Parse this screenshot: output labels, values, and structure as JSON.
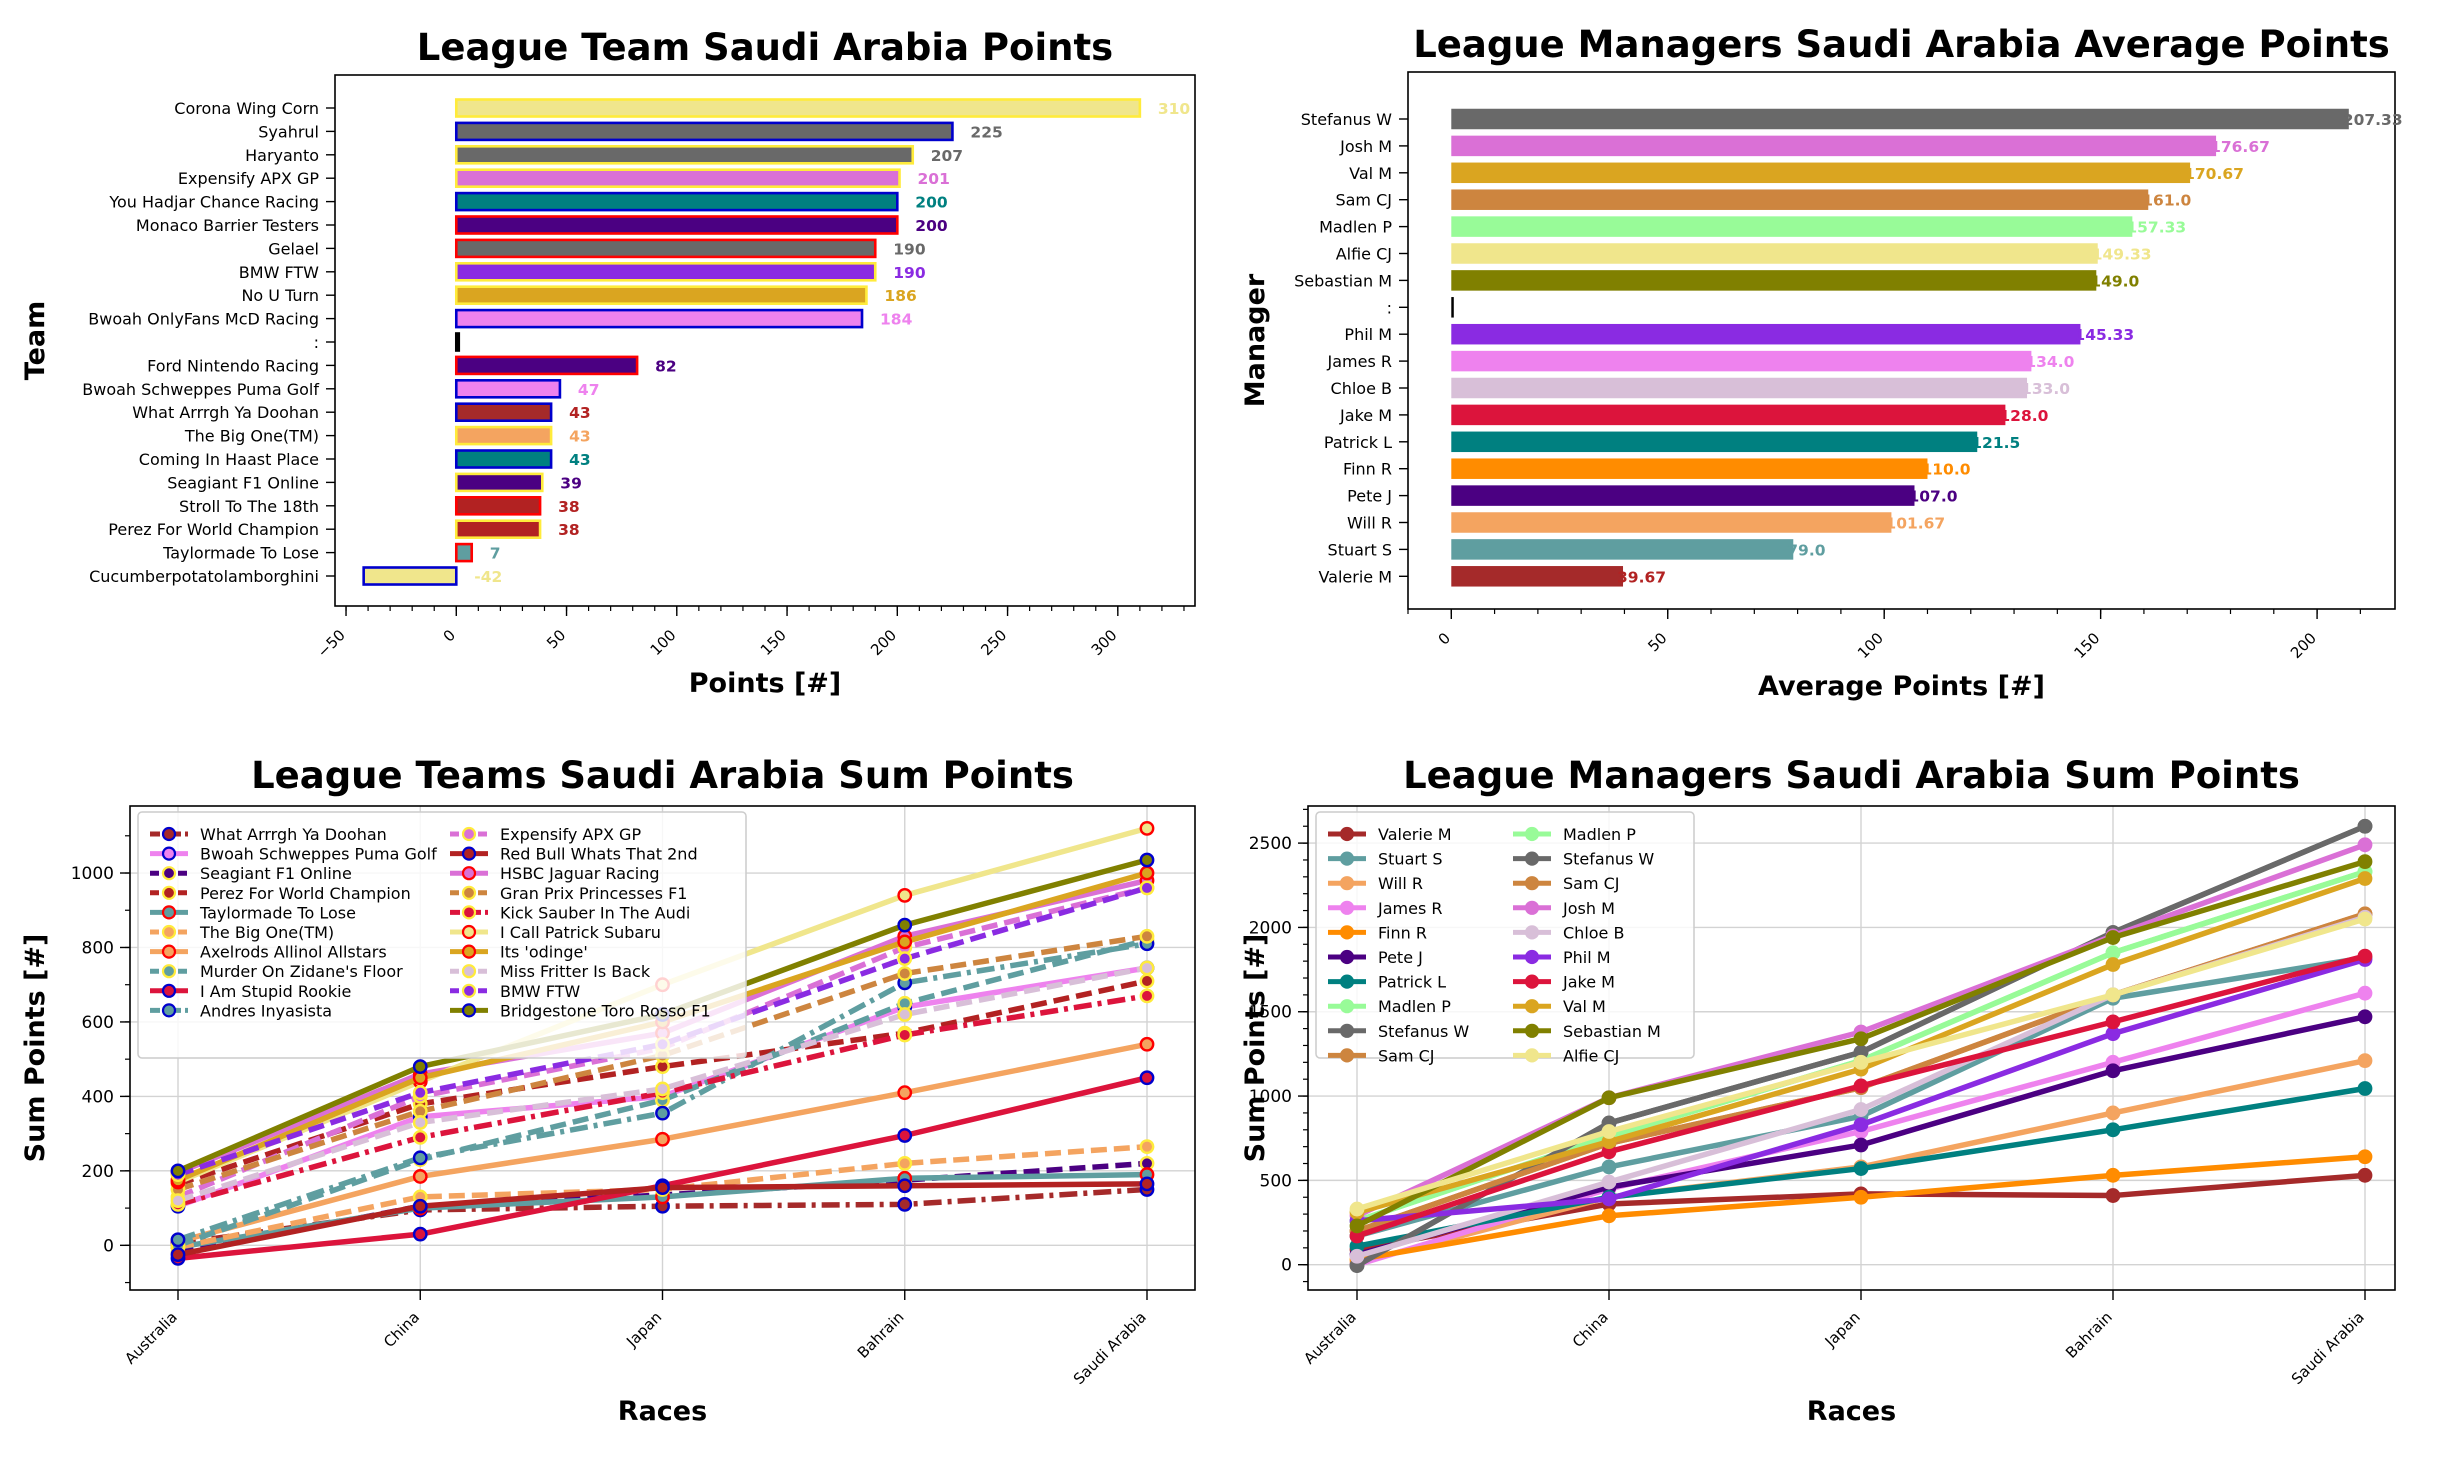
{
  "chart_data": [
    {
      "type": "bar",
      "orientation": "horizontal",
      "title": "League Team Saudi Arabia Points",
      "xlabel": "Points [#]",
      "ylabel": "Team",
      "xlim": [
        -55,
        335
      ],
      "xticks": [
        -50,
        0,
        50,
        100,
        150,
        200,
        250,
        300
      ],
      "xtick_labels": [
        "−50",
        "0",
        "50",
        "100",
        "150",
        "200",
        "250",
        "300"
      ],
      "categories": [
        "Corona Wing Corn",
        "Syahrul",
        "Haryanto",
        "Expensify APX GP",
        "You Hadjar Chance Racing",
        "Monaco Barrier Testers",
        "Gelael",
        "BMW FTW",
        "No U Turn",
        "Bwoah OnlyFans McD Racing",
        ":",
        "Ford Nintendo Racing",
        "Bwoah Schweppes Puma Golf",
        "What Arrrgh Ya Doohan",
        "The Big One(TM)",
        "Coming In Haast Place",
        "Seagiant F1 Online",
        "Stroll To The 18th",
        "Perez For World Champion",
        "Taylormade To Lose",
        "Cucumberpotatolamborghini"
      ],
      "values": [
        310,
        225,
        207,
        201,
        200,
        200,
        190,
        190,
        186,
        184,
        0,
        82,
        47,
        43,
        43,
        43,
        39,
        38,
        38,
        7,
        -42
      ],
      "value_labels": [
        "310",
        "225",
        "207",
        "201",
        "200",
        "200",
        "190",
        "190",
        "186",
        "184",
        "",
        "82",
        "47",
        "43",
        "43",
        "43",
        "39",
        "38",
        "38",
        "7",
        "-42"
      ],
      "fill_colors": [
        "#f0e68c",
        "#696969",
        "#696969",
        "#da70d6",
        "#008080",
        "#4b0082",
        "#696969",
        "#8a2be2",
        "#daa520",
        "#ee82ee",
        "#000000",
        "#4b0082",
        "#ee82ee",
        "#a52a2a",
        "#f4a460",
        "#008080",
        "#4b0082",
        "#b22222",
        "#b22222",
        "#5f9ea0",
        "#f0e68c"
      ],
      "edge_colors": [
        "#ffeb3b",
        "#0000cd",
        "#ffeb3b",
        "#ffeb3b",
        "#0000cd",
        "#ff0000",
        "#ff0000",
        "#ffeb3b",
        "#ffeb3b",
        "#0000cd",
        "#000000",
        "#ff0000",
        "#0000cd",
        "#0000cd",
        "#ffeb3b",
        "#0000cd",
        "#ffeb3b",
        "#ff0000",
        "#ffeb3b",
        "#ff0000",
        "#0000cd"
      ],
      "label_colors": [
        "#f0e68c",
        "#696969",
        "#696969",
        "#da70d6",
        "#008080",
        "#4b0082",
        "#696969",
        "#8a2be2",
        "#daa520",
        "#ee82ee",
        "#000000",
        "#4b0082",
        "#ee82ee",
        "#b22222",
        "#f4a460",
        "#008080",
        "#4b0082",
        "#b22222",
        "#b22222",
        "#5f9ea0",
        "#f0e68c"
      ]
    },
    {
      "type": "bar",
      "orientation": "horizontal",
      "title": "League Managers Saudi Arabia Average Points",
      "xlabel": "Average Points [#]",
      "ylabel": "Manager",
      "xlim": [
        -10,
        218
      ],
      "xticks": [
        0,
        50,
        100,
        150,
        200
      ],
      "xtick_labels": [
        "0",
        "50",
        "100",
        "150",
        "200"
      ],
      "categories": [
        "Stefanus W",
        "Josh M",
        "Val M",
        "Sam CJ",
        "Madlen P",
        "Alfie CJ",
        "Sebastian M",
        ":",
        "Phil M",
        "James R",
        "Chloe B",
        "Jake M",
        "Patrick L",
        "Finn R",
        "Pete J",
        "Will R",
        "Stuart S",
        "Valerie M"
      ],
      "values": [
        207.33,
        176.67,
        170.67,
        161.0,
        157.33,
        149.33,
        149.0,
        0,
        145.33,
        134.0,
        133.0,
        128.0,
        121.5,
        110.0,
        107.0,
        101.67,
        79.0,
        39.67
      ],
      "value_labels": [
        "207.33",
        "176.67",
        "170.67",
        "161.0",
        "157.33",
        "149.33",
        "149.0",
        "",
        "145.33",
        "134.0",
        "133.0",
        "128.0",
        "121.5",
        "110.0",
        "107.0",
        "101.67",
        "79.0",
        "39.67"
      ],
      "fill_colors": [
        "#696969",
        "#da70d6",
        "#daa520",
        "#cd853f",
        "#98fb98",
        "#f0e68c",
        "#808000",
        "#000000",
        "#8a2be2",
        "#ee82ee",
        "#d8bfd8",
        "#dc143c",
        "#008080",
        "#ff8c00",
        "#4b0082",
        "#f4a460",
        "#5f9ea0",
        "#a52a2a"
      ],
      "label_colors": [
        "#696969",
        "#da70d6",
        "#daa520",
        "#cd853f",
        "#98fb98",
        "#f0e68c",
        "#808000",
        "#000000",
        "#8a2be2",
        "#ee82ee",
        "#d8bfd8",
        "#dc143c",
        "#008080",
        "#ff8c00",
        "#4b0082",
        "#f4a460",
        "#5f9ea0",
        "#b22222"
      ]
    },
    {
      "type": "line",
      "title": "League Teams Saudi Arabia Sum Points",
      "xlabel": "Races",
      "ylabel": "Sum Points [#]",
      "categories": [
        "Australia",
        "China",
        "Japan",
        "Bahrain",
        "Saudi Arabia"
      ],
      "ylim": [
        -120,
        1180
      ],
      "yticks": [
        0,
        200,
        400,
        600,
        800,
        1000
      ],
      "grid": true,
      "legend_position": "top-left",
      "legend_columns": 2,
      "series": [
        {
          "name": "What Arrrgh Ya Doohan",
          "values": [
            5,
            95,
            105,
            110,
            150
          ],
          "color": "#a52a2a",
          "dash": "dashdot",
          "marker_edge": "#0000cd"
        },
        {
          "name": "Bwoah Schweppes Puma Golf",
          "values": [
            105,
            345,
            400,
            640,
            745
          ],
          "color": "#ee82ee",
          "dash": "solid",
          "marker_edge": "#0000cd"
        },
        {
          "name": "Seagiant F1 Online",
          "values": [
            -20,
            105,
            135,
            175,
            220
          ],
          "color": "#4b0082",
          "dash": "dashed",
          "marker_edge": "#ffeb3b"
        },
        {
          "name": "Perez For World Champion",
          "values": [
            165,
            380,
            480,
            570,
            710
          ],
          "color": "#b22222",
          "dash": "dashed",
          "marker_edge": "#ffeb3b"
        },
        {
          "name": "Taylormade To Lose",
          "values": [
            -5,
            100,
            130,
            180,
            190
          ],
          "color": "#5f9ea0",
          "dash": "solid",
          "marker_edge": "#ff0000"
        },
        {
          "name": "The Big One(TM)",
          "values": [
            -5,
            130,
            150,
            220,
            265
          ],
          "color": "#f4a460",
          "dash": "dashed",
          "marker_edge": "#ffeb3b"
        },
        {
          "name": "Axelrods Allinol Allstars",
          "values": [
            10,
            185,
            285,
            410,
            540
          ],
          "color": "#f4a460",
          "dash": "solid",
          "marker_edge": "#ff0000"
        },
        {
          "name": "Murder On Zidane's Floor",
          "values": [
            0,
            230,
            390,
            650,
            820
          ],
          "color": "#5f9ea0",
          "dash": "dashed",
          "marker_edge": "#ffeb3b"
        },
        {
          "name": "I Am Stupid Rookie",
          "values": [
            -35,
            30,
            160,
            295,
            450
          ],
          "color": "#dc143c",
          "dash": "solid",
          "marker_edge": "#0000cd"
        },
        {
          "name": "Andres Inyasista",
          "values": [
            15,
            235,
            355,
            705,
            810
          ],
          "color": "#5f9ea0",
          "dash": "dashdot",
          "marker_edge": "#0000cd"
        },
        {
          "name": "Expensify APX GP",
          "values": [
            130,
            400,
            530,
            800,
            960
          ],
          "color": "#da70d6",
          "dash": "dashed",
          "marker_edge": "#ffeb3b"
        },
        {
          "name": "Red Bull Whats That 2nd",
          "values": [
            -25,
            105,
            155,
            160,
            165
          ],
          "color": "#b22222",
          "dash": "solid",
          "marker_edge": "#0000cd"
        },
        {
          "name": "HSBC Jaguar Racing",
          "values": [
            195,
            460,
            570,
            830,
            980
          ],
          "color": "#da70d6",
          "dash": "solid",
          "marker_edge": "#ff0000"
        },
        {
          "name": "Gran Prix Princesses F1",
          "values": [
            150,
            360,
            510,
            730,
            830
          ],
          "color": "#cd853f",
          "dash": "dashed",
          "marker_edge": "#ffeb3b"
        },
        {
          "name": "Kick Sauber In The Audi",
          "values": [
            110,
            290,
            410,
            565,
            670
          ],
          "color": "#dc143c",
          "dash": "dashdot",
          "marker_edge": "#ffeb3b"
        },
        {
          "name": "I Call Patrick Subaru",
          "values": [
            170,
            440,
            700,
            940,
            1120
          ],
          "color": "#f0e68c",
          "dash": "solid",
          "marker_edge": "#ff0000"
        },
        {
          "name": "Its 'odinge'",
          "values": [
            175,
            450,
            600,
            815,
            1000
          ],
          "color": "#daa520",
          "dash": "solid",
          "marker_edge": "#ff0000"
        },
        {
          "name": "Miss Fritter Is Back",
          "values": [
            120,
            330,
            420,
            620,
            745
          ],
          "color": "#d8bfd8",
          "dash": "dashed",
          "marker_edge": "#ffeb3b"
        },
        {
          "name": "BMW FTW",
          "values": [
            190,
            410,
            540,
            770,
            960
          ],
          "color": "#8a2be2",
          "dash": "dashed",
          "marker_edge": "#ffeb3b"
        },
        {
          "name": "Bridgestone Toro Rosso F1",
          "values": [
            200,
            480,
            620,
            860,
            1035
          ],
          "color": "#808000",
          "dash": "solid",
          "marker_edge": "#0000cd"
        }
      ]
    },
    {
      "type": "line",
      "title": "League Managers Saudi Arabia Sum Points",
      "xlabel": "Races",
      "ylabel": "Sum Points [#]",
      "categories": [
        "Australia",
        "China",
        "Japan",
        "Bahrain",
        "Saudi Arabia"
      ],
      "ylim": [
        -150,
        2720
      ],
      "yticks": [
        0,
        500,
        1000,
        1500,
        2000,
        2500
      ],
      "grid": true,
      "legend_position": "top-left",
      "legend_columns": 2,
      "series": [
        {
          "name": "Valerie M",
          "values": [
            90,
            360,
            420,
            410,
            530
          ],
          "color": "#a52a2a"
        },
        {
          "name": "Stuart S",
          "values": [
            170,
            580,
            880,
            1580,
            1820
          ],
          "color": "#5f9ea0"
        },
        {
          "name": "Will R",
          "values": [
            10,
            400,
            580,
            900,
            1210
          ],
          "color": "#f4a460"
        },
        {
          "name": "James R",
          "values": [
            0,
            450,
            790,
            1200,
            1610
          ],
          "color": "#ee82ee"
        },
        {
          "name": "Finn R",
          "values": [
            30,
            290,
            400,
            530,
            640
          ],
          "color": "#ff8c00"
        },
        {
          "name": "Pete J",
          "values": [
            60,
            460,
            710,
            1150,
            1470
          ],
          "color": "#4b0082"
        },
        {
          "name": "Patrick L",
          "values": [
            110,
            400,
            570,
            800,
            1045
          ],
          "color": "#008080"
        },
        {
          "name": "Madlen P",
          "values": [
            260,
            760,
            1210,
            1850,
            2330
          ],
          "color": "#98fb98"
        },
        {
          "name": "Stefanus W",
          "values": [
            -5,
            840,
            1260,
            1970,
            2600
          ],
          "color": "#696969"
        },
        {
          "name": "Sam CJ",
          "values": [
            200,
            720,
            1050,
            1600,
            2080
          ],
          "color": "#cd853f"
        },
        {
          "name": "Madlen P",
          "values": [
            260,
            760,
            1210,
            1850,
            2330
          ],
          "color": "#98fb98"
        },
        {
          "name": "Stefanus W",
          "values": [
            -5,
            840,
            1260,
            1970,
            2600
          ],
          "color": "#696969"
        },
        {
          "name": "Sam CJ",
          "values": [
            200,
            720,
            1050,
            1600,
            2080
          ],
          "color": "#cd853f"
        },
        {
          "name": "Josh M",
          "values": [
            290,
            990,
            1380,
            1950,
            2490
          ],
          "color": "#da70d6"
        },
        {
          "name": "Chloe B",
          "values": [
            50,
            490,
            920,
            1600,
            2060
          ],
          "color": "#d8bfd8"
        },
        {
          "name": "Phil M",
          "values": [
            260,
            390,
            830,
            1370,
            1810
          ],
          "color": "#8a2be2"
        },
        {
          "name": "Jake M",
          "values": [
            170,
            670,
            1060,
            1440,
            1830
          ],
          "color": "#dc143c"
        },
        {
          "name": "Val M",
          "values": [
            310,
            730,
            1160,
            1780,
            2290
          ],
          "color": "#daa520"
        },
        {
          "name": "Sebastian M",
          "values": [
            230,
            990,
            1340,
            1940,
            2390
          ],
          "color": "#808000"
        },
        {
          "name": "Alfie CJ",
          "values": [
            330,
            790,
            1200,
            1600,
            2050
          ],
          "color": "#f0e68c"
        }
      ]
    }
  ]
}
